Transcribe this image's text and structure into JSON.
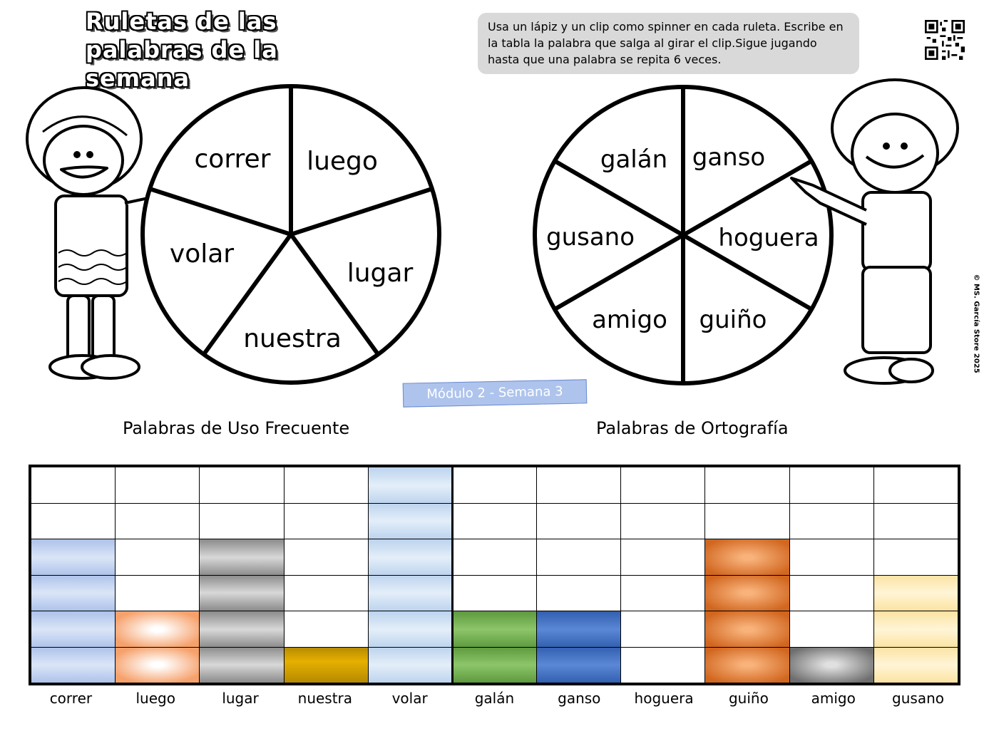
{
  "title": {
    "line1": "Ruletas de las",
    "line2": "palabras de la semana"
  },
  "instructions": "Usa un lápiz y un clip como spinner en cada ruleta. Escribe en la tabla la palabra que salga al girar el clip.Sigue jugando hasta que una palabra se repita 6 veces.",
  "copyright": "© MS. García Store 2025",
  "module_label": "Módulo 2 - Semana 3",
  "wheel_left": {
    "words": [
      "correr",
      "luego",
      "lugar",
      "nuestra",
      "volar"
    ]
  },
  "wheel_right": {
    "words": [
      "galán",
      "ganso",
      "hoguera",
      "guiño",
      "amigo",
      "gusano"
    ]
  },
  "sections": {
    "left": "Palabras de Uso Frecuente",
    "right": "Palabras de Ortografía"
  },
  "graph": {
    "rows": 6,
    "columns": [
      {
        "label": "correr",
        "count": 4,
        "color": "blue"
      },
      {
        "label": "luego",
        "count": 2,
        "color": "orange1"
      },
      {
        "label": "lugar",
        "count": 4,
        "color": "gray"
      },
      {
        "label": "nuestra",
        "count": 1,
        "color": "gold"
      },
      {
        "label": "volar",
        "count": 6,
        "color": "lightblue"
      },
      {
        "label": "galán",
        "count": 2,
        "color": "green"
      },
      {
        "label": "ganso",
        "count": 2,
        "color": "navy"
      },
      {
        "label": "hoguera",
        "count": 0,
        "color": "none"
      },
      {
        "label": "guiño",
        "count": 4,
        "color": "orange2"
      },
      {
        "label": "amigo",
        "count": 1,
        "color": "graydark"
      },
      {
        "label": "gusano",
        "count": 3,
        "color": "yellow"
      }
    ]
  }
}
